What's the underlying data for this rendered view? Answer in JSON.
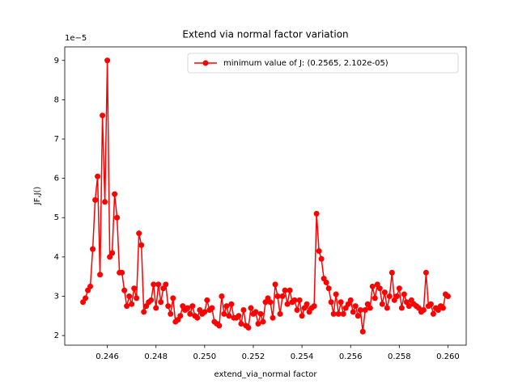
{
  "chart_data": {
    "type": "line",
    "title": "Extend via normal factor variation",
    "xlabel": "extend_via_normal factor",
    "ylabel": "JF,J()",
    "y_offset_label": "1e−5",
    "x": [
      0.245,
      0.2451,
      0.2452,
      0.2453,
      0.2454,
      0.2455,
      0.2456,
      0.2457,
      0.2458,
      0.2459,
      0.246,
      0.2461,
      0.2462,
      0.2463,
      0.2464,
      0.2465,
      0.2466,
      0.2467,
      0.2468,
      0.2469,
      0.247,
      0.2471,
      0.2472,
      0.2473,
      0.2474,
      0.2475,
      0.2476,
      0.2477,
      0.2478,
      0.2479,
      0.248,
      0.2481,
      0.2482,
      0.2483,
      0.2484,
      0.2485,
      0.2486,
      0.2487,
      0.2488,
      0.2489,
      0.249,
      0.2491,
      0.2492,
      0.2493,
      0.2494,
      0.2495,
      0.2496,
      0.2497,
      0.2498,
      0.2499,
      0.25,
      0.2501,
      0.2502,
      0.2503,
      0.2504,
      0.2505,
      0.2506,
      0.2507,
      0.2508,
      0.2509,
      0.251,
      0.2511,
      0.2512,
      0.2513,
      0.2514,
      0.2515,
      0.2516,
      0.2517,
      0.2518,
      0.2519,
      0.252,
      0.2521,
      0.2522,
      0.2523,
      0.2524,
      0.2525,
      0.2526,
      0.2527,
      0.2528,
      0.2529,
      0.253,
      0.2531,
      0.2532,
      0.2533,
      0.2534,
      0.2535,
      0.2536,
      0.2537,
      0.2538,
      0.2539,
      0.254,
      0.2541,
      0.2542,
      0.2543,
      0.2544,
      0.2545,
      0.2546,
      0.2547,
      0.2548,
      0.2549,
      0.255,
      0.2551,
      0.2552,
      0.2553,
      0.2554,
      0.2555,
      0.2556,
      0.2557,
      0.2558,
      0.2559,
      0.256,
      0.2561,
      0.2562,
      0.2563,
      0.2564,
      0.2565,
      0.2566,
      0.2567,
      0.2568,
      0.2569,
      0.257,
      0.2571,
      0.2572,
      0.2573,
      0.2574,
      0.2575,
      0.2576,
      0.2577,
      0.2578,
      0.2579,
      0.258,
      0.2581,
      0.2582,
      0.2583,
      0.2584,
      0.2585,
      0.2586,
      0.2587,
      0.2588,
      0.2589,
      0.259,
      0.2591,
      0.2592,
      0.2593,
      0.2594,
      0.2595,
      0.2596,
      0.2597,
      0.2598,
      0.2599,
      0.26
    ],
    "series": [
      {
        "name": "minimum value of J: (0.2565, 2.102e-05)",
        "color": "#ff0000",
        "values": [
          2.85,
          2.95,
          3.15,
          3.25,
          4.2,
          5.45,
          6.05,
          3.55,
          7.6,
          5.4,
          9.0,
          4.0,
          4.1,
          5.6,
          5.0,
          3.6,
          3.6,
          3.15,
          2.75,
          3.0,
          2.8,
          3.2,
          2.95,
          4.6,
          4.3,
          2.6,
          2.75,
          2.85,
          2.9,
          3.3,
          2.7,
          3.3,
          2.85,
          3.2,
          3.3,
          2.75,
          2.55,
          2.95,
          2.35,
          2.4,
          2.5,
          2.75,
          2.65,
          2.7,
          2.55,
          2.75,
          2.5,
          2.45,
          2.65,
          2.55,
          2.6,
          2.9,
          2.65,
          2.7,
          2.35,
          2.3,
          2.25,
          3.0,
          2.55,
          2.75,
          2.5,
          2.8,
          2.45,
          2.45,
          2.5,
          2.3,
          2.65,
          2.25,
          2.2,
          2.7,
          2.55,
          2.6,
          2.3,
          2.55,
          2.35,
          2.85,
          2.95,
          2.85,
          2.45,
          3.3,
          3.0,
          2.55,
          3.0,
          3.15,
          2.8,
          3.15,
          2.85,
          2.9,
          2.65,
          2.9,
          2.5,
          2.7,
          2.8,
          2.6,
          2.7,
          2.75,
          5.1,
          4.15,
          3.95,
          3.45,
          3.35,
          3.2,
          2.85,
          2.55,
          3.05,
          2.55,
          2.85,
          2.55,
          2.7,
          2.8,
          2.9,
          2.6,
          2.75,
          2.5,
          2.65,
          2.1,
          2.65,
          2.8,
          2.7,
          3.25,
          2.95,
          3.3,
          3.2,
          2.8,
          3.1,
          2.7,
          3.0,
          3.6,
          2.9,
          3.0,
          3.2,
          2.7,
          3.05,
          2.85,
          2.75,
          2.9,
          2.8,
          2.75,
          2.7,
          2.6,
          2.65,
          3.6,
          2.75,
          2.8,
          2.55,
          2.7,
          2.65,
          2.75,
          2.7,
          3.05,
          3.0
        ]
      }
    ],
    "xlim": [
      0.24425,
      0.26075
    ],
    "ylim": [
      1.755,
      9.345
    ],
    "xticks": [
      0.246,
      0.248,
      {
        "value": 0.25,
        "label": "0.250"
      },
      0.252,
      0.254,
      0.256,
      0.258,
      {
        "value": 0.26,
        "label": "0.260"
      }
    ],
    "yticks": [
      2,
      3,
      4,
      5,
      6,
      7,
      8,
      9
    ],
    "legend": "upper right",
    "grid": false
  }
}
